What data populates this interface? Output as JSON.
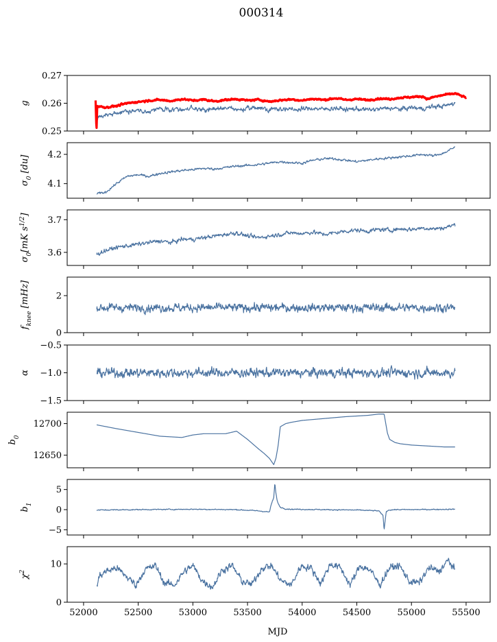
{
  "figure_title": "000314",
  "xlabel": "MJD",
  "chart_data": [
    {
      "type": "line",
      "ylabel": "g",
      "ylabel_html": "g",
      "xlim": [
        51850,
        55720
      ],
      "ylim": [
        0.25,
        0.27
      ],
      "yticks": [
        0.25,
        0.26,
        0.27
      ],
      "ytick_labels": [
        "0.25",
        "0.26",
        "0.27"
      ],
      "series": [
        {
          "color": "#4a72a0",
          "width": 1.2,
          "x": [
            52120,
            52150,
            52200,
            52300,
            52400,
            52500,
            52600,
            52700,
            52800,
            52900,
            53000,
            53100,
            53200,
            53300,
            53400,
            53500,
            53600,
            53700,
            53800,
            53900,
            54000,
            54100,
            54200,
            54300,
            54400,
            54500,
            54600,
            54700,
            54800,
            54900,
            55000,
            55100,
            55200,
            55300,
            55400
          ],
          "y": [
            0.2545,
            0.255,
            0.2555,
            0.2565,
            0.257,
            0.2575,
            0.2572,
            0.258,
            0.2575,
            0.2578,
            0.2582,
            0.2576,
            0.2579,
            0.2583,
            0.2577,
            0.258,
            0.2585,
            0.2578,
            0.2581,
            0.2576,
            0.2579,
            0.2582,
            0.2578,
            0.2583,
            0.2577,
            0.258,
            0.2576,
            0.2579,
            0.2583,
            0.2578,
            0.2585,
            0.258,
            0.2588,
            0.259,
            0.26
          ],
          "noise": 0.0008
        },
        {
          "color": "#ff0000",
          "width": 3.2,
          "x": [
            52110,
            52118,
            52125,
            52150,
            52200,
            52300,
            52400,
            52500,
            52600,
            52700,
            52800,
            52900,
            53000,
            53100,
            53200,
            53300,
            53400,
            53500,
            53600,
            53700,
            53800,
            53900,
            54000,
            54100,
            54200,
            54300,
            54400,
            54500,
            54600,
            54700,
            54800,
            54900,
            55000,
            55100,
            55150,
            55200,
            55300,
            55400,
            55500
          ],
          "y": [
            0.261,
            0.25,
            0.259,
            0.2588,
            0.2585,
            0.259,
            0.26,
            0.2605,
            0.261,
            0.2612,
            0.2608,
            0.2615,
            0.261,
            0.2613,
            0.2607,
            0.2612,
            0.2615,
            0.261,
            0.2613,
            0.2606,
            0.2611,
            0.2614,
            0.261,
            0.2616,
            0.2612,
            0.2618,
            0.2612,
            0.2615,
            0.2611,
            0.2617,
            0.2615,
            0.262,
            0.2622,
            0.2625,
            0.2615,
            0.2622,
            0.263,
            0.2635,
            0.262
          ],
          "noise": 0.0003
        }
      ]
    },
    {
      "type": "line",
      "ylabel": "σ0 [du]",
      "ylabel_html": "σ<tspan baseline-shift='sub' font-size='9'>0</tspan> [du]",
      "xlim": [
        51850,
        55720
      ],
      "ylim": [
        4.05,
        4.24
      ],
      "yticks": [
        4.1,
        4.2
      ],
      "ytick_labels": [
        "4.1",
        "4.2"
      ],
      "series": [
        {
          "color": "#4a72a0",
          "width": 1.2,
          "x": [
            52120,
            52200,
            52300,
            52400,
            52500,
            52600,
            52700,
            52800,
            52900,
            53000,
            53100,
            53200,
            53300,
            53400,
            53500,
            53600,
            53700,
            53800,
            53900,
            54000,
            54100,
            54200,
            54300,
            54400,
            54500,
            54600,
            54700,
            54800,
            54900,
            55000,
            55100,
            55200,
            55300,
            55400
          ],
          "y": [
            4.065,
            4.07,
            4.1,
            4.125,
            4.13,
            4.125,
            4.135,
            4.14,
            4.145,
            4.148,
            4.152,
            4.15,
            4.155,
            4.16,
            4.162,
            4.165,
            4.17,
            4.175,
            4.172,
            4.17,
            4.18,
            4.185,
            4.185,
            4.18,
            4.175,
            4.18,
            4.185,
            4.188,
            4.192,
            4.195,
            4.2,
            4.195,
            4.205,
            4.225
          ],
          "noise": 0.004
        }
      ]
    },
    {
      "type": "line",
      "ylabel": "σ0[mK s^1/2]",
      "ylabel_html": "σ<tspan baseline-shift='sub' font-size='9'>0</tspan>[mK s<tspan baseline-shift='super' font-size='9'>1/2</tspan>]",
      "xlim": [
        51850,
        55720
      ],
      "ylim": [
        3.56,
        3.73
      ],
      "yticks": [
        3.6,
        3.7
      ],
      "ytick_labels": [
        "3.6",
        "3.7"
      ],
      "series": [
        {
          "color": "#4a72a0",
          "width": 1.2,
          "x": [
            52120,
            52200,
            52300,
            52400,
            52500,
            52600,
            52700,
            52800,
            52900,
            53000,
            53100,
            53200,
            53300,
            53400,
            53500,
            53600,
            53700,
            53800,
            53900,
            54000,
            54100,
            54200,
            54300,
            54400,
            54500,
            54600,
            54700,
            54800,
            54900,
            55000,
            55100,
            55200,
            55300,
            55400
          ],
          "y": [
            3.595,
            3.605,
            3.615,
            3.62,
            3.625,
            3.63,
            3.635,
            3.63,
            3.64,
            3.64,
            3.645,
            3.65,
            3.655,
            3.66,
            3.65,
            3.645,
            3.65,
            3.655,
            3.66,
            3.658,
            3.662,
            3.655,
            3.66,
            3.665,
            3.668,
            3.665,
            3.67,
            3.668,
            3.672,
            3.67,
            3.675,
            3.672,
            3.675,
            3.685
          ],
          "noise": 0.006
        }
      ]
    },
    {
      "type": "line",
      "ylabel": "fknee [mHz]",
      "ylabel_html": "f<tspan baseline-shift='sub' font-size='9'>knee</tspan> [mHz]",
      "xlim": [
        51850,
        55720
      ],
      "ylim": [
        0,
        3
      ],
      "yticks": [
        0,
        2
      ],
      "ytick_labels": [
        "0",
        "2"
      ],
      "series": [
        {
          "color": "#4a72a0",
          "width": 1.2,
          "x": [
            52120,
            55400
          ],
          "y": [
            1.35,
            1.35
          ],
          "noise": 0.22
        }
      ]
    },
    {
      "type": "line",
      "ylabel": "α",
      "ylabel_html": "α",
      "xlim": [
        51850,
        55720
      ],
      "ylim": [
        -1.5,
        -0.5
      ],
      "yticks": [
        -1.5,
        -1.0,
        -0.5
      ],
      "ytick_labels": [
        "−1.5",
        "−1.0",
        "−0.5"
      ],
      "series": [
        {
          "color": "#4a72a0",
          "width": 1.2,
          "x": [
            52120,
            55400
          ],
          "y": [
            -1.0,
            -1.0
          ],
          "noise": 0.08
        }
      ]
    },
    {
      "type": "line",
      "ylabel": "b0",
      "ylabel_html": "b<tspan baseline-shift='sub' font-size='9'>0</tspan>",
      "xlim": [
        51850,
        55720
      ],
      "ylim": [
        12630,
        12718
      ],
      "yticks": [
        12650,
        12700
      ],
      "ytick_labels": [
        "12650",
        "12700"
      ],
      "series": [
        {
          "color": "#4a72a0",
          "width": 1.2,
          "x": [
            52120,
            52300,
            52500,
            52700,
            52900,
            53000,
            53100,
            53200,
            53300,
            53400,
            53500,
            53600,
            53650,
            53700,
            53740,
            53760,
            53780,
            53800,
            53850,
            53900,
            54000,
            54200,
            54400,
            54600,
            54700,
            54750,
            54760,
            54780,
            54800,
            54850,
            54900,
            55000,
            55100,
            55200,
            55300,
            55400
          ],
          "y": [
            12698,
            12692,
            12686,
            12680,
            12678,
            12682,
            12684,
            12684,
            12684,
            12688,
            12675,
            12660,
            12653,
            12645,
            12635,
            12645,
            12665,
            12695,
            12700,
            12702,
            12705,
            12708,
            12711,
            12713,
            12715,
            12715,
            12705,
            12685,
            12675,
            12670,
            12668,
            12666,
            12665,
            12664,
            12663,
            12663
          ],
          "noise": 0
        }
      ]
    },
    {
      "type": "line",
      "ylabel": "b1",
      "ylabel_html": "b<tspan baseline-shift='sub' font-size='9'>1</tspan>",
      "xlim": [
        51850,
        55720
      ],
      "ylim": [
        -6.3,
        7.5
      ],
      "yticks": [
        -5,
        0,
        5
      ],
      "ytick_labels": [
        "−5",
        "0",
        "5"
      ],
      "series": [
        {
          "color": "#4a72a0",
          "width": 1.2,
          "x": [
            52120,
            52500,
            53000,
            53400,
            53600,
            53700,
            53720,
            53740,
            53750,
            53760,
            53770,
            53780,
            53800,
            53850,
            53900,
            54200,
            54500,
            54700,
            54740,
            54750,
            54760,
            54770,
            54790,
            54850,
            55000,
            55400
          ],
          "y": [
            -0.1,
            0.0,
            0.1,
            0.0,
            -0.3,
            -0.6,
            1.5,
            3.0,
            6.5,
            4.0,
            2.5,
            1.5,
            0.6,
            0.2,
            0.1,
            0.0,
            -0.1,
            -0.3,
            -1.5,
            -5.0,
            -2.5,
            -0.5,
            -0.1,
            0.0,
            0.0,
            0.1
          ],
          "noise": 0.12
        }
      ]
    },
    {
      "type": "line",
      "ylabel": "χ2",
      "ylabel_html": "χ<tspan baseline-shift='super' font-size='9'>2</tspan>",
      "xlim": [
        51850,
        55720
      ],
      "ylim": [
        0,
        14.5
      ],
      "yticks": [
        0,
        10
      ],
      "ytick_labels": [
        "0",
        "10"
      ],
      "series": [
        {
          "color": "#4a72a0",
          "width": 1.2,
          "x": [
            52120,
            52150,
            52200,
            52300,
            52400,
            52480,
            52560,
            52660,
            52740,
            52830,
            52920,
            53000,
            53090,
            53180,
            53270,
            53360,
            53450,
            53540,
            53630,
            53720,
            53810,
            53900,
            53990,
            54080,
            54170,
            54260,
            54350,
            54440,
            54530,
            54620,
            54710,
            54800,
            54890,
            54980,
            55070,
            55160,
            55250,
            55340,
            55400
          ],
          "y": [
            4.5,
            7.0,
            8.0,
            9.0,
            6.5,
            4.5,
            8.5,
            9.5,
            5.0,
            4.5,
            8.0,
            9.5,
            5.5,
            4.0,
            8.5,
            9.5,
            5.5,
            4.5,
            9.0,
            9.5,
            5.5,
            4.5,
            9.5,
            9.0,
            5.0,
            10.0,
            9.0,
            4.5,
            9.5,
            8.5,
            4.5,
            9.0,
            9.5,
            5.5,
            5.0,
            9.0,
            8.0,
            11.0,
            8.0
          ],
          "noise": 0.9
        }
      ]
    }
  ],
  "xticks": [
    52000,
    52500,
    53000,
    53500,
    54000,
    54500,
    55000,
    55500
  ],
  "xtick_labels": [
    "52000",
    "52500",
    "53000",
    "53500",
    "54000",
    "54500",
    "55000",
    "55500"
  ]
}
